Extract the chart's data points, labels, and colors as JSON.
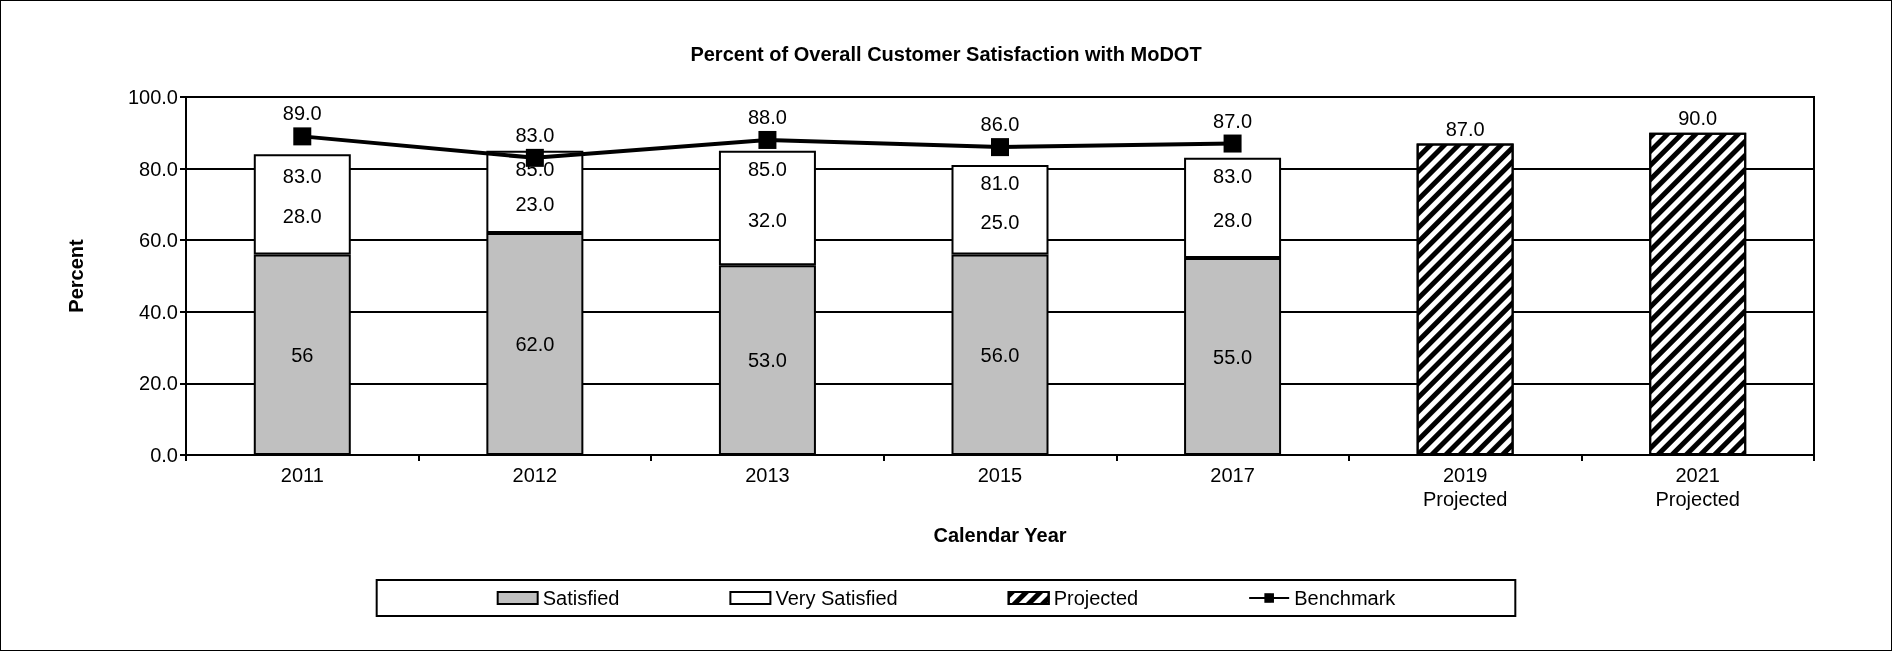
{
  "chart_data": {
    "type": "bar",
    "title": "Percent of Overall Customer Satisfaction with MoDOT",
    "xlabel": "Calendar Year",
    "ylabel": "Percent",
    "categories": [
      "2011",
      "2012",
      "2013",
      "2015",
      "2017",
      "2019\nProjected",
      "2021\nProjected"
    ],
    "series": [
      {
        "name": "Satisfied",
        "color": "#c0c0c0",
        "values": [
          56,
          62,
          53,
          56,
          55,
          null,
          null
        ],
        "value_labels": [
          "56",
          "62.0",
          "53.0",
          "56.0",
          "55.0",
          null,
          null
        ]
      },
      {
        "name": "Very Satisfied",
        "color": "#ffffff",
        "values": [
          28,
          23,
          32,
          25,
          28,
          null,
          null
        ],
        "value_labels": [
          "28.0",
          "23.0",
          "32.0",
          "25.0",
          "28.0",
          null,
          null
        ]
      },
      {
        "name": "Projected",
        "color": "#000000",
        "values": [
          null,
          null,
          null,
          null,
          null,
          87,
          90
        ],
        "value_labels": [
          null,
          null,
          null,
          null,
          null,
          "87.0",
          "90.0"
        ]
      },
      {
        "name": "Benchmark",
        "type": "line",
        "color": "#000000",
        "values": [
          89,
          83,
          88,
          86,
          87,
          null,
          null
        ],
        "value_labels": [
          "89.0",
          "83.0",
          "88.0",
          "86.0",
          "87.0",
          null,
          null
        ]
      }
    ],
    "stacked": true,
    "annotations": [
      {
        "text": "83.0",
        "x": "2011",
        "y": 83
      },
      {
        "text": "85.0",
        "x": "2012",
        "y": 85
      },
      {
        "text": "85.0",
        "x": "2013",
        "y": 85
      },
      {
        "text": "81.0",
        "x": "2015",
        "y": 81
      },
      {
        "text": "83.0",
        "x": "2017",
        "y": 83
      }
    ],
    "ylim": [
      0,
      100
    ],
    "yticks": [
      {
        "value": 0,
        "label": "0.0"
      },
      {
        "value": 20,
        "label": "20.0"
      },
      {
        "value": 40,
        "label": "40.0"
      },
      {
        "value": 60,
        "label": "60.0"
      },
      {
        "value": 80,
        "label": "80.0"
      },
      {
        "value": 100,
        "label": "100.0"
      }
    ],
    "grid": "y",
    "legend": "bottom",
    "marker": "square",
    "line_style": "solid"
  }
}
